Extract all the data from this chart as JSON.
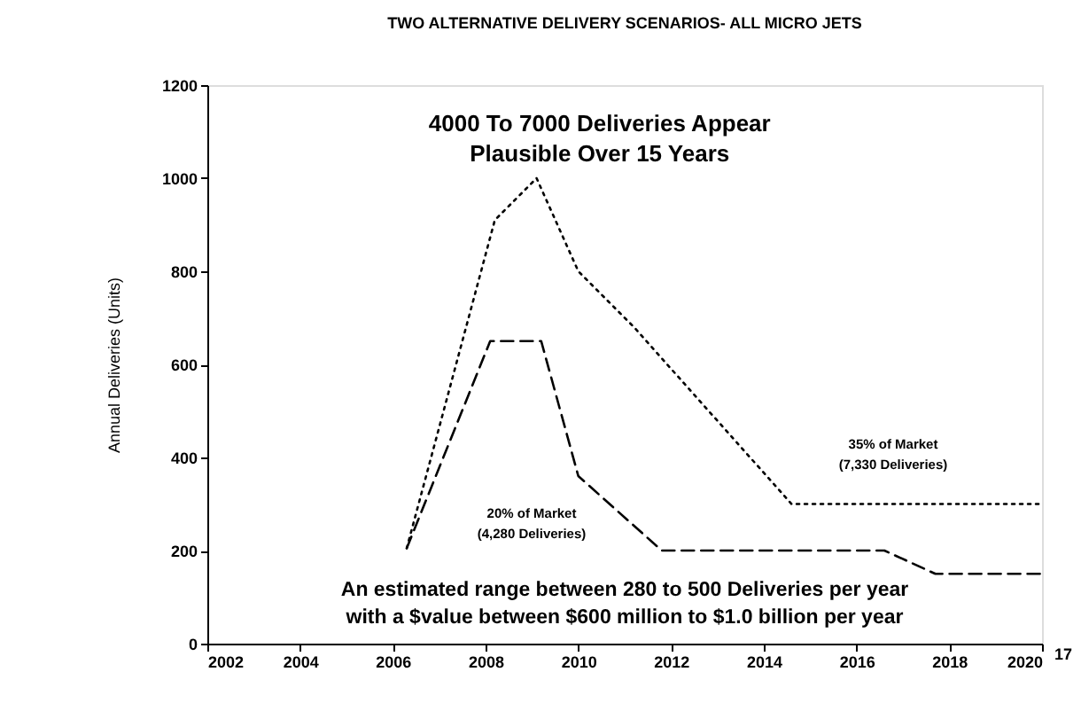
{
  "chart_data": {
    "type": "line",
    "title": "TWO ALTERNATIVE DELIVERY SCENARIOS- ALL MICRO JETS",
    "ylabel": "Annual Deliveries (Units)",
    "xlim": [
      2002,
      2020
    ],
    "xticks": [
      2002,
      2004,
      2006,
      2008,
      2010,
      2012,
      2014,
      2016,
      2018,
      2020
    ],
    "ylim": [
      0,
      1200
    ],
    "yticks": [
      0,
      200,
      400,
      600,
      800,
      1000,
      1200
    ],
    "grid": false,
    "marker": "none",
    "series": [
      {
        "color": "#000000",
        "line_style": "dotted",
        "x": [
          2006.3,
          2008.2,
          2009.1,
          2010.0,
          2011.2,
          2014.6,
          2020
        ],
        "values": [
          205,
          910,
          1000,
          800,
          680,
          300,
          300
        ]
      },
      {
        "color": "#000000",
        "line_style": "dashed",
        "x": [
          2006.3,
          2008.1,
          2009.2,
          2010.0,
          2011.8,
          2016.6,
          2017.7,
          2020
        ],
        "values": [
          205,
          650,
          650,
          360,
          200,
          200,
          150,
          150
        ]
      }
    ],
    "annotations": [
      "4000 To 7000 Deliveries Appear\nPlausible Over 15 Years",
      "An estimated range between 280 to 500 Deliveries per year\nwith a $value between $600 million to $1.0 billion per year",
      "17",
      "35% of Market\n(7,330 Deliveries)",
      "20% of Market\n(4,280 Deliveries)"
    ]
  }
}
